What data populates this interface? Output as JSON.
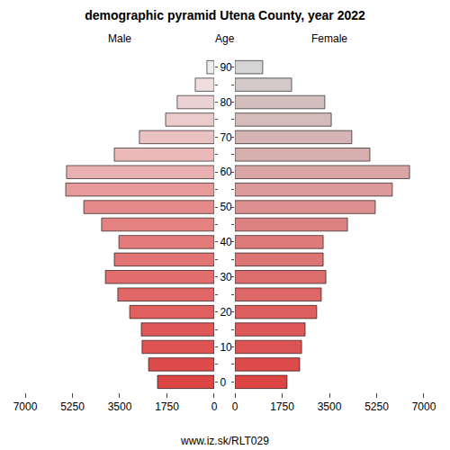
{
  "chart_data": {
    "type": "bar",
    "orientation": "horizontal",
    "title": "demographic pyramid Utena County, year 2022",
    "ylabel": "Age",
    "annotations": [
      "www.iz.sk/RLT029"
    ],
    "categories": [
      "0",
      null,
      "10",
      null,
      "20",
      null,
      "30",
      null,
      "40",
      null,
      "50",
      null,
      "60",
      null,
      "70",
      null,
      "80",
      null,
      "90"
    ],
    "xlim": [
      0,
      7000
    ],
    "xticks": [
      0,
      1750,
      3500,
      5250,
      7000
    ],
    "grid": false,
    "series": [
      {
        "name": "Male",
        "values": [
          2100,
          2430,
          2670,
          2700,
          3130,
          3570,
          4030,
          3700,
          3530,
          4170,
          4830,
          5500,
          5470,
          3700,
          2770,
          1800,
          1370,
          700,
          270
        ],
        "colors": [
          "#dd4444",
          "#de4b4b",
          "#de5252",
          "#df5858",
          "#e05f5f",
          "#e16666",
          "#e26d6d",
          "#e27474",
          "#e37b7b",
          "#e48282",
          "#e58a8a",
          "#e69a9a",
          "#e8b0b0",
          "#e9b8b8",
          "#eac2c2",
          "#ebcaca",
          "#ecd3d3",
          "#eedede",
          "#eeeeee"
        ]
      },
      {
        "name": "Female",
        "values": [
          1930,
          2400,
          2470,
          2600,
          3030,
          3200,
          3370,
          3270,
          3270,
          4170,
          5200,
          5830,
          6470,
          5000,
          4330,
          3570,
          3330,
          2100,
          1030
        ],
        "colors": [
          "#dd4444",
          "#dd4b4b",
          "#dd5252",
          "#dd5858",
          "#dd5f5f",
          "#dd6666",
          "#dd6d6d",
          "#dd7474",
          "#dd7b7b",
          "#dd8282",
          "#dd9090",
          "#dc9a9a",
          "#d9a5a5",
          "#d7aeae",
          "#d6b4b4",
          "#d5baba",
          "#d4bfbf",
          "#d4c8c8",
          "#d4d4d4"
        ]
      }
    ]
  }
}
